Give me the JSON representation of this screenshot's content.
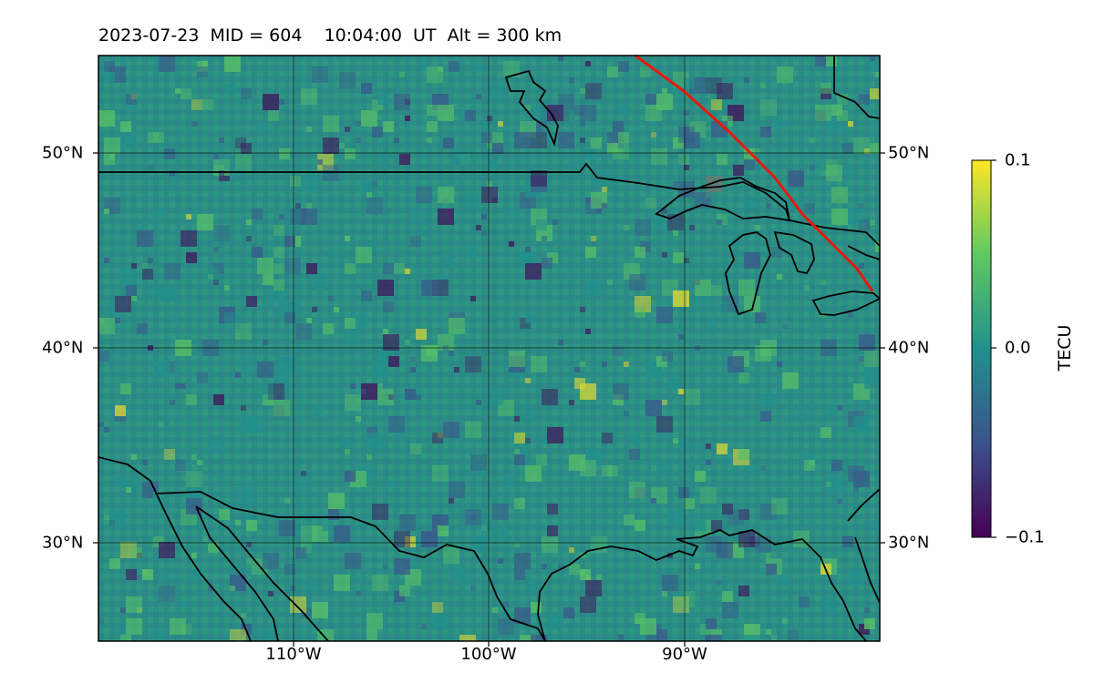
{
  "title": {
    "date": "2023-07-23",
    "mid": "MID = 604",
    "time": "10:04:00  UT",
    "alt": "Alt = 300 km"
  },
  "map": {
    "lat_ticks": [
      "50°N",
      "40°N",
      "30°N"
    ],
    "lon_ticks": [
      "110°W",
      "100°W",
      "90°W"
    ],
    "track_color": "#e8180c"
  },
  "colorbar": {
    "label": "TECU",
    "ticks": [
      "0.1",
      "0.0",
      "−0.1"
    ],
    "colormap": [
      "#440154",
      "#3b528b",
      "#21918c",
      "#5ec962",
      "#fde725"
    ]
  }
}
